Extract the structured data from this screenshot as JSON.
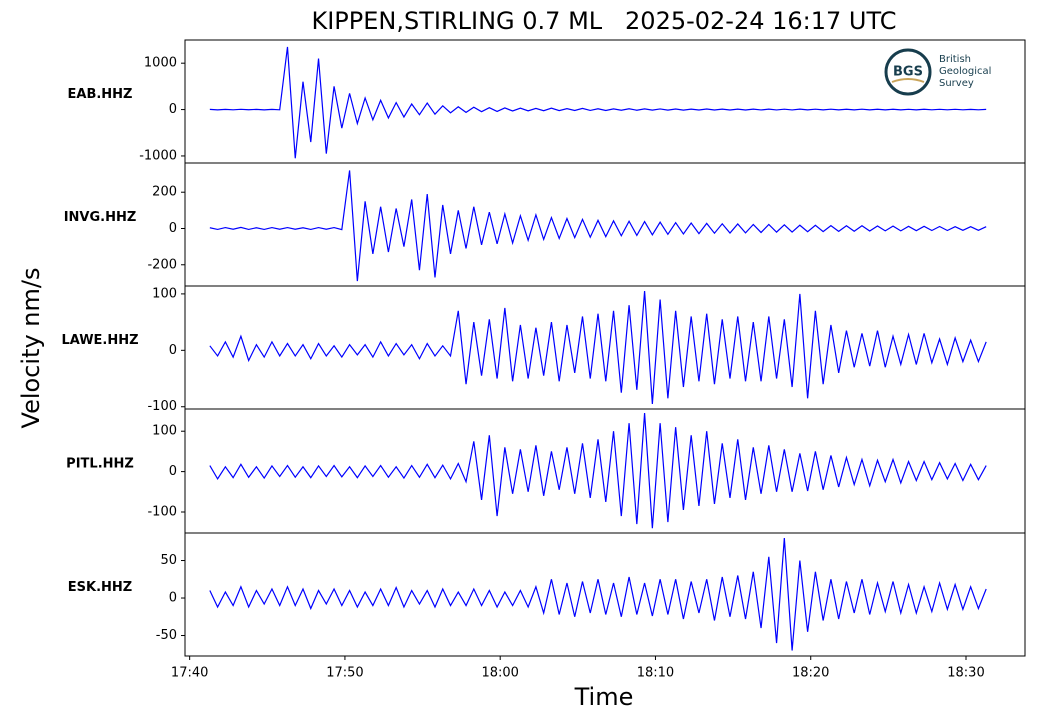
{
  "chart_data": {
    "type": "line",
    "title": "KIPPEN,STIRLING 0.7 ML   2025-02-24 16:17 UTC",
    "xlabel": "Time",
    "ylabel": "Velocity nm/s",
    "logo": {
      "abbr": "BGS",
      "lines": [
        "British",
        "Geological",
        "Survey"
      ]
    },
    "xlim": [
      1059.7,
      1113.8
    ],
    "xticks": [
      {
        "value": 1060,
        "label": "17:40"
      },
      {
        "value": 1070,
        "label": "17:50"
      },
      {
        "value": 1080,
        "label": "18:00"
      },
      {
        "value": 1090,
        "label": "18:10"
      },
      {
        "value": 1100,
        "label": "18:20"
      },
      {
        "value": 1110,
        "label": "18:30"
      }
    ],
    "x": [
      1061.3,
      1061.8,
      1062.3,
      1062.8,
      1063.3,
      1063.8,
      1064.3,
      1064.8,
      1065.3,
      1065.8,
      1066.3,
      1066.8,
      1067.3,
      1067.8,
      1068.3,
      1068.8,
      1069.3,
      1069.8,
      1070.3,
      1070.8,
      1071.3,
      1071.8,
      1072.3,
      1072.8,
      1073.3,
      1073.8,
      1074.3,
      1074.8,
      1075.3,
      1075.8,
      1076.3,
      1076.8,
      1077.3,
      1077.8,
      1078.3,
      1078.8,
      1079.3,
      1079.8,
      1080.3,
      1080.8,
      1081.3,
      1081.8,
      1082.3,
      1082.8,
      1083.3,
      1083.8,
      1084.3,
      1084.8,
      1085.3,
      1085.8,
      1086.3,
      1086.8,
      1087.3,
      1087.8,
      1088.3,
      1088.8,
      1089.3,
      1089.8,
      1090.3,
      1090.8,
      1091.3,
      1091.8,
      1092.3,
      1092.8,
      1093.3,
      1093.8,
      1094.3,
      1094.8,
      1095.3,
      1095.8,
      1096.3,
      1096.8,
      1097.3,
      1097.8,
      1098.3,
      1098.8,
      1099.3,
      1099.8,
      1100.3,
      1100.8,
      1101.3,
      1101.8,
      1102.3,
      1102.8,
      1103.3,
      1103.8,
      1104.3,
      1104.8,
      1105.3,
      1105.8,
      1106.3,
      1106.8,
      1107.3,
      1107.8,
      1108.3,
      1108.8,
      1109.3,
      1109.8,
      1110.3,
      1110.8,
      1111.3
    ],
    "series": [
      {
        "name": "EAB.HHZ",
        "color": "#0000ff",
        "ylim": [
          -1152,
          1500
        ],
        "yticks": [
          1000,
          0,
          -1000
        ],
        "values": [
          5,
          -6,
          4,
          -5,
          6,
          -4,
          5,
          -6,
          4,
          -5,
          1350,
          -1050,
          600,
          -700,
          1100,
          -950,
          500,
          -400,
          350,
          -300,
          250,
          -220,
          200,
          -180,
          150,
          -160,
          120,
          -110,
          140,
          -100,
          80,
          -70,
          60,
          -60,
          50,
          -45,
          40,
          -40,
          35,
          -30,
          30,
          -28,
          25,
          -25,
          30,
          -22,
          20,
          -20,
          25,
          -18,
          18,
          -20,
          15,
          -15,
          18,
          -14,
          15,
          -12,
          14,
          -12,
          12,
          -12,
          10,
          -10,
          12,
          -10,
          10,
          -9,
          10,
          -9,
          9,
          -8,
          10,
          -8,
          8,
          -8,
          9,
          -7,
          8,
          -7,
          8,
          -7,
          7,
          -7,
          8,
          -6,
          7,
          -6,
          7,
          -6,
          6,
          -6,
          7,
          -5,
          6,
          -5,
          6,
          -5,
          5,
          -5,
          5
        ]
      },
      {
        "name": "INVG.HHZ",
        "color": "#0000ff",
        "ylim": [
          -317,
          361
        ],
        "yticks": [
          200,
          0,
          -200
        ],
        "values": [
          4,
          -5,
          5,
          -4,
          6,
          -5,
          4,
          -5,
          5,
          -4,
          5,
          -4,
          4,
          -5,
          5,
          -4,
          5,
          -6,
          320,
          -290,
          150,
          -140,
          120,
          -130,
          110,
          -100,
          160,
          -230,
          190,
          -270,
          130,
          -140,
          100,
          -110,
          120,
          -90,
          90,
          -85,
          80,
          -80,
          70,
          -65,
          75,
          -60,
          60,
          -55,
          55,
          -50,
          50,
          -48,
          45,
          -45,
          42,
          -40,
          40,
          -38,
          38,
          -35,
          35,
          -32,
          32,
          -30,
          30,
          -28,
          28,
          -26,
          26,
          -25,
          25,
          -24,
          22,
          -22,
          22,
          -20,
          20,
          -20,
          18,
          -18,
          18,
          -17,
          16,
          -16,
          15,
          -15,
          15,
          -14,
          14,
          -13,
          13,
          -13,
          12,
          -12,
          12,
          -11,
          11,
          -11,
          10,
          -10,
          10,
          -10,
          10
        ]
      },
      {
        "name": "LAWE.HHZ",
        "color": "#0000ff",
        "ylim": [
          -104,
          114
        ],
        "yticks": [
          100,
          0,
          -100
        ],
        "values": [
          8,
          -10,
          15,
          -12,
          25,
          -18,
          10,
          -12,
          15,
          -10,
          12,
          -10,
          10,
          -15,
          12,
          -10,
          8,
          -12,
          10,
          -8,
          10,
          -12,
          15,
          -10,
          12,
          -8,
          10,
          -15,
          12,
          -10,
          8,
          -10,
          70,
          -60,
          50,
          -45,
          55,
          -50,
          75,
          -55,
          45,
          -50,
          40,
          -45,
          50,
          -55,
          45,
          -40,
          60,
          -50,
          65,
          -55,
          70,
          -75,
          80,
          -70,
          105,
          -95,
          90,
          -85,
          70,
          -65,
          60,
          -55,
          65,
          -60,
          55,
          -50,
          60,
          -55,
          50,
          -55,
          60,
          -50,
          55,
          -65,
          100,
          -85,
          70,
          -60,
          45,
          -40,
          35,
          -30,
          30,
          -28,
          35,
          -30,
          25,
          -25,
          28,
          -25,
          30,
          -22,
          20,
          -25,
          22,
          -20,
          18,
          -20,
          15
        ]
      },
      {
        "name": "PITL.HHZ",
        "color": "#0000ff",
        "ylim": [
          -152,
          155
        ],
        "yticks": [
          100,
          0,
          -100
        ],
        "values": [
          15,
          -18,
          12,
          -15,
          18,
          -14,
          12,
          -16,
          14,
          -12,
          15,
          -14,
          12,
          -15,
          14,
          -12,
          15,
          -13,
          12,
          -15,
          14,
          -12,
          15,
          -14,
          12,
          -16,
          15,
          -14,
          18,
          -15,
          16,
          -18,
          20,
          -25,
          75,
          -70,
          90,
          -110,
          60,
          -55,
          55,
          -50,
          65,
          -60,
          50,
          -45,
          60,
          -55,
          70,
          -65,
          80,
          -75,
          100,
          -110,
          120,
          -130,
          145,
          -140,
          120,
          -125,
          110,
          -95,
          90,
          -85,
          100,
          -80,
          70,
          -65,
          80,
          -70,
          60,
          -55,
          65,
          -50,
          55,
          -50,
          45,
          -48,
          50,
          -45,
          40,
          -38,
          35,
          -32,
          30,
          -35,
          28,
          -25,
          30,
          -28,
          25,
          -22,
          25,
          -20,
          22,
          -18,
          20,
          -22,
          18,
          -20,
          15
        ]
      },
      {
        "name": "ESK.HHZ",
        "color": "#0000ff",
        "ylim": [
          -77.3,
          86.7
        ],
        "yticks": [
          50,
          0,
          -50
        ],
        "values": [
          10,
          -12,
          8,
          -10,
          15,
          -12,
          10,
          -8,
          12,
          -10,
          15,
          -10,
          12,
          -14,
          10,
          -8,
          12,
          -10,
          10,
          -12,
          8,
          -10,
          12,
          -10,
          14,
          -12,
          10,
          -8,
          10,
          -12,
          12,
          -10,
          8,
          -10,
          12,
          -10,
          10,
          -12,
          8,
          -10,
          10,
          -12,
          15,
          -20,
          25,
          -22,
          20,
          -25,
          22,
          -20,
          25,
          -22,
          20,
          -25,
          28,
          -22,
          20,
          -24,
          25,
          -22,
          25,
          -28,
          22,
          -20,
          25,
          -30,
          28,
          -25,
          30,
          -28,
          35,
          -40,
          55,
          -60,
          80,
          -70,
          50,
          -45,
          35,
          -30,
          25,
          -28,
          22,
          -20,
          25,
          -22,
          20,
          -18,
          22,
          -20,
          18,
          -20,
          15,
          -18,
          20,
          -15,
          18,
          -15,
          15,
          -14,
          12
        ]
      }
    ]
  }
}
